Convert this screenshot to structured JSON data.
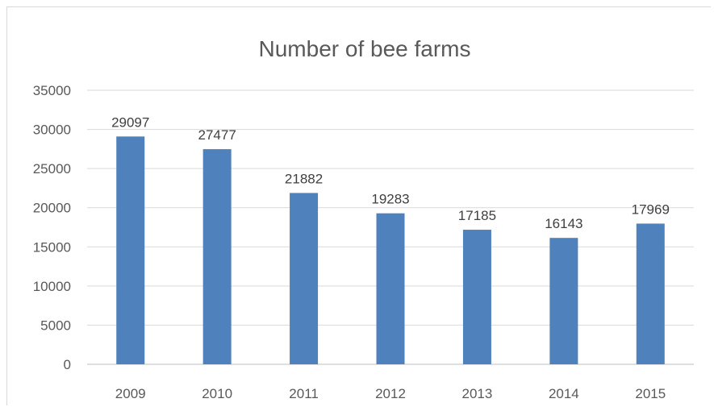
{
  "chart_data": {
    "type": "bar",
    "title": "Number of bee farms",
    "xlabel": "",
    "ylabel": "",
    "categories": [
      "2009",
      "2010",
      "2011",
      "2012",
      "2013",
      "2014",
      "2015"
    ],
    "values": [
      29097,
      27477,
      21882,
      19283,
      17185,
      16143,
      17969
    ],
    "ylim": [
      0,
      35000
    ],
    "yticks": [
      0,
      5000,
      10000,
      15000,
      20000,
      25000,
      30000,
      35000
    ],
    "grid": true,
    "legend": "none",
    "colors": {
      "bar": "#4f81bd",
      "grid": "#d9d9d9",
      "axis": "#bfbfbf",
      "text": "#595959"
    }
  }
}
